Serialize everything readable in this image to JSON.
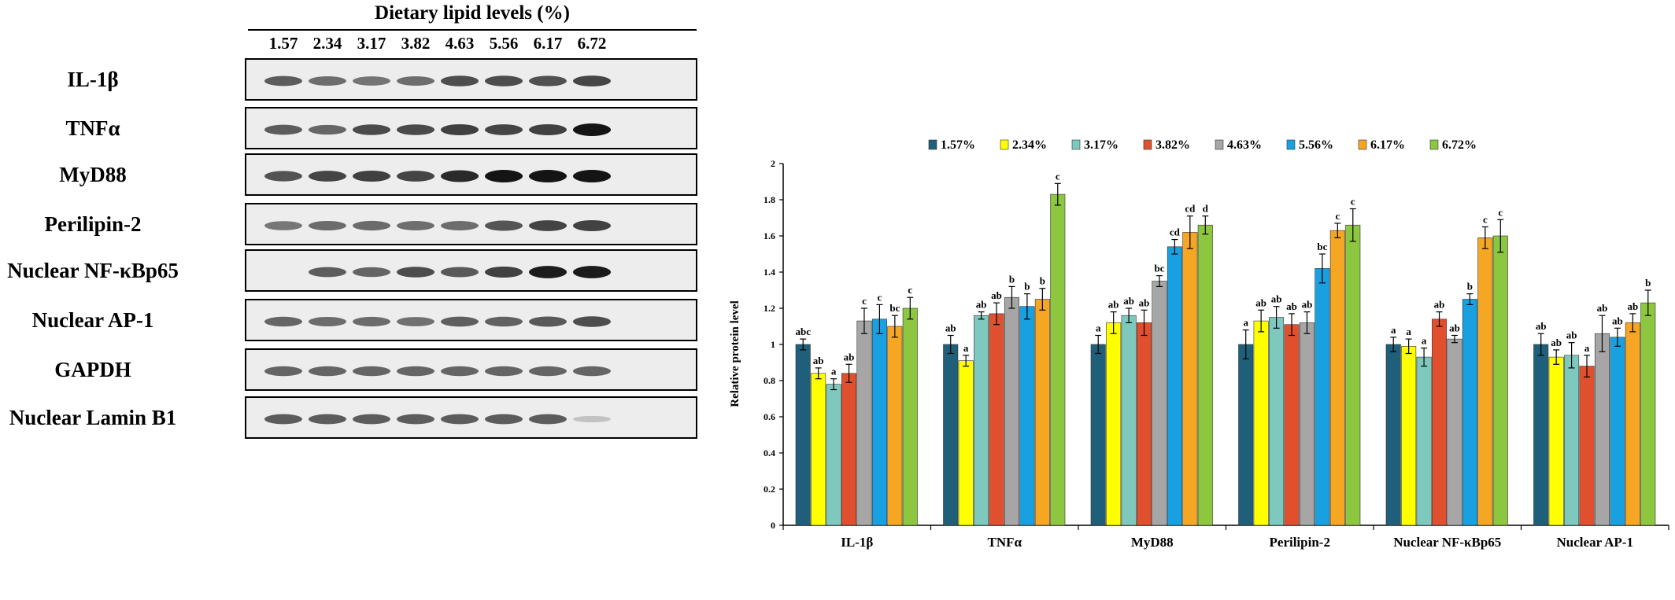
{
  "blot": {
    "title": "Dietary lipid levels (%)",
    "lanes": [
      "1.57",
      "2.34",
      "3.17",
      "3.82",
      "4.63",
      "5.56",
      "6.17",
      "6.72"
    ],
    "rows": [
      {
        "label": "IL-1β",
        "band": [
          1.0,
          0.84,
          0.78,
          0.84,
          1.13,
          1.14,
          1.1,
          1.2
        ],
        "offset": 0.6
      },
      {
        "label": "TNFα",
        "band": [
          1.0,
          0.91,
          1.16,
          1.17,
          1.26,
          1.21,
          1.25,
          1.83
        ],
        "offset": 0.6
      },
      {
        "label": "MyD88",
        "band": [
          1.0,
          1.12,
          1.16,
          1.12,
          1.35,
          1.54,
          1.62,
          1.66
        ],
        "offset": 0.65
      },
      {
        "label": "Perilipin-2",
        "band": [
          1.0,
          1.13,
          1.15,
          1.11,
          1.12,
          1.42,
          1.63,
          1.66
        ],
        "offset": 0.45
      },
      {
        "label": "Nuclear NF-κBp65",
        "band": [
          1.0,
          0.99,
          0.93,
          1.14,
          1.03,
          1.25,
          1.59,
          1.6
        ],
        "offset": 0.6,
        "skip_first": true
      },
      {
        "label": "Nuclear AP-1",
        "band": [
          1.0,
          0.93,
          0.94,
          0.88,
          1.06,
          1.04,
          1.12,
          1.23
        ],
        "offset": 0.55
      },
      {
        "label": "GAPDH",
        "band": [
          1.0,
          1.0,
          1.0,
          1.0,
          1.0,
          1.0,
          1.0,
          1.0
        ],
        "offset": 0.55
      },
      {
        "label": "Nuclear Lamin B1",
        "band": [
          1.0,
          1.0,
          1.0,
          1.0,
          1.0,
          1.0,
          1.0,
          0.06
        ],
        "offset": 0.6
      }
    ]
  },
  "chart_data": {
    "type": "bar",
    "title": "",
    "xlabel": "",
    "ylabel": "Relative protein level",
    "ylim": [
      0,
      2
    ],
    "yticks": [
      "0",
      "0.2",
      "0.4",
      "0.6",
      "0.8",
      "1",
      "1.2",
      "1.4",
      "1.6",
      "1.8",
      "2"
    ],
    "legend_position": "top",
    "categories": [
      "IL-1β",
      "TNFα",
      "MyD88",
      "Perilipin-2",
      "Nuclear NF-κBp65",
      "Nuclear AP-1"
    ],
    "series": [
      {
        "name": "1.57%",
        "color": "#1F5F7A",
        "values": [
          1.0,
          1.0,
          1.0,
          1.0,
          1.0,
          1.0
        ],
        "errors": [
          0.03,
          0.05,
          0.05,
          0.08,
          0.04,
          0.06
        ],
        "labels": [
          "abc",
          "ab",
          "a",
          "a",
          "a",
          "ab"
        ]
      },
      {
        "name": "2.34%",
        "color": "#FFFF00",
        "values": [
          0.84,
          0.91,
          1.12,
          1.13,
          0.99,
          0.93
        ],
        "errors": [
          0.03,
          0.03,
          0.06,
          0.06,
          0.04,
          0.04
        ],
        "labels": [
          "ab",
          "a",
          "ab",
          "ab",
          "a",
          "ab"
        ]
      },
      {
        "name": "3.17%",
        "color": "#7FC8BE",
        "values": [
          0.78,
          1.16,
          1.16,
          1.15,
          0.93,
          0.94
        ],
        "errors": [
          0.03,
          0.02,
          0.04,
          0.06,
          0.05,
          0.07
        ],
        "labels": [
          "a",
          "ab",
          "ab",
          "ab",
          "a",
          "ab"
        ]
      },
      {
        "name": "3.82%",
        "color": "#E0502E",
        "values": [
          0.84,
          1.17,
          1.12,
          1.11,
          1.14,
          0.88
        ],
        "errors": [
          0.05,
          0.06,
          0.07,
          0.06,
          0.04,
          0.06
        ],
        "labels": [
          "ab",
          "ab",
          "ab",
          "ab",
          "ab",
          "a"
        ]
      },
      {
        "name": "4.63%",
        "color": "#A6A6A6",
        "values": [
          1.13,
          1.26,
          1.35,
          1.12,
          1.03,
          1.06
        ],
        "errors": [
          0.07,
          0.06,
          0.03,
          0.06,
          0.02,
          0.1
        ],
        "labels": [
          "c",
          "b",
          "bc",
          "ab",
          "ab",
          "ab"
        ]
      },
      {
        "name": "5.56%",
        "color": "#19A0E0",
        "values": [
          1.14,
          1.21,
          1.54,
          1.42,
          1.25,
          1.04
        ],
        "errors": [
          0.08,
          0.07,
          0.04,
          0.08,
          0.03,
          0.05
        ],
        "labels": [
          "c",
          "b",
          "cd",
          "bc",
          "b",
          "ab"
        ]
      },
      {
        "name": "6.17%",
        "color": "#F5A623",
        "values": [
          1.1,
          1.25,
          1.62,
          1.63,
          1.59,
          1.12
        ],
        "errors": [
          0.06,
          0.06,
          0.09,
          0.04,
          0.06,
          0.05
        ],
        "labels": [
          "bc",
          "b",
          "cd",
          "c",
          "c",
          "ab"
        ]
      },
      {
        "name": "6.72%",
        "color": "#8DC63F",
        "values": [
          1.2,
          1.83,
          1.66,
          1.66,
          1.6,
          1.23
        ],
        "errors": [
          0.06,
          0.06,
          0.05,
          0.09,
          0.09,
          0.07
        ],
        "labels": [
          "c",
          "c",
          "d",
          "c",
          "c",
          "b"
        ]
      }
    ]
  }
}
